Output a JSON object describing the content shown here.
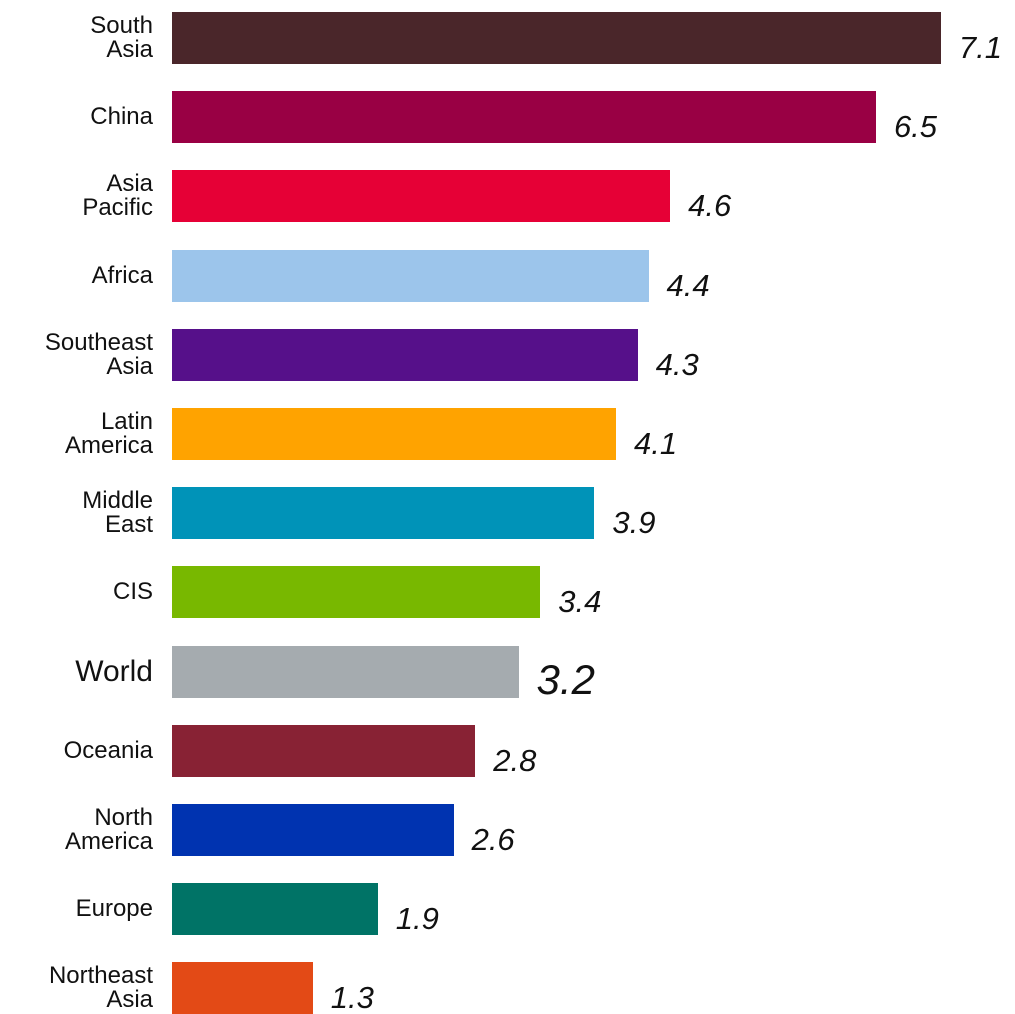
{
  "chart_data": {
    "type": "bar",
    "orientation": "horizontal",
    "categories": [
      "South Asia",
      "China",
      "Asia Pacific",
      "Africa",
      "Southeast Asia",
      "Latin America",
      "Middle East",
      "CIS",
      "World",
      "Oceania",
      "North America",
      "Europe",
      "Northeast Asia"
    ],
    "values": [
      7.1,
      6.5,
      4.6,
      4.4,
      4.3,
      4.1,
      3.9,
      3.4,
      3.2,
      2.8,
      2.6,
      1.9,
      1.3
    ],
    "colors": [
      "#4a262a",
      "#990044",
      "#e60036",
      "#9cc5eb",
      "#56108a",
      "#ffa300",
      "#0093b8",
      "#78b800",
      "#a5abaf",
      "#882234",
      "#0033b0",
      "#007366",
      "#e34a16"
    ]
  }
}
